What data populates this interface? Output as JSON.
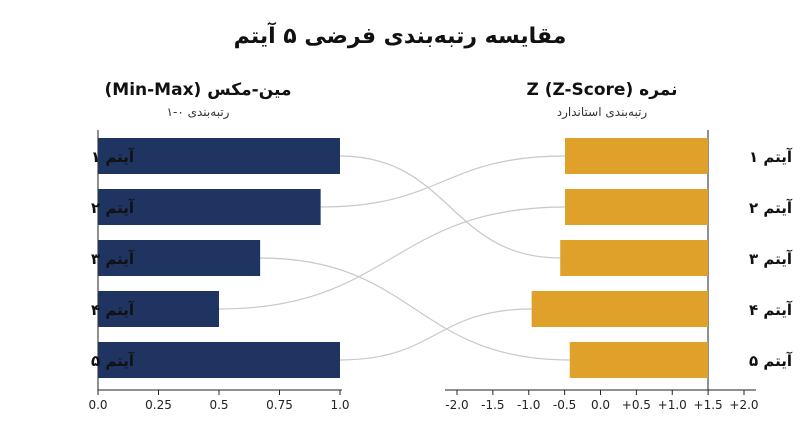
{
  "title": "مقایسه رتبه‌بندی فرضی ۵ آیتم",
  "colors": {
    "minmax": "#1f3461",
    "zscore": "#e0a12a",
    "connector": "#c8c8c8",
    "axis": "#222222"
  },
  "chart_data": [
    {
      "type": "bar",
      "orientation": "horizontal",
      "title": "مین-مکس (Min-Max)",
      "subtitle": "رتبه‌بندی ۰-۱",
      "categories": [
        "آیتم ۱",
        "آیتم ۲",
        "آیتم ۳",
        "آیتم ۴",
        "آیتم ۵"
      ],
      "values": [
        1.0,
        0.92,
        0.67,
        0.5,
        1.0
      ],
      "xlim": [
        0,
        1.0
      ],
      "ticks": [
        0.0,
        0.25,
        0.5,
        0.75,
        1.0
      ],
      "tick_labels": [
        "0.0",
        "0.25",
        "0.5",
        "0.75",
        "1.0"
      ],
      "color": "#1f3461"
    },
    {
      "type": "bar",
      "orientation": "horizontal",
      "title": "نمره Z (Z-Score)",
      "subtitle": "رتبه‌بندی استاندارد",
      "categories": [
        "آیتم ۱",
        "آیتم ۲",
        "آیتم ۳",
        "آیتم ۴",
        "آیتم ۵"
      ],
      "values": [
        1.5,
        1.5,
        1.55,
        1.85,
        1.45
      ],
      "xlim": [
        -2.0,
        2.0
      ],
      "ticks": [
        -2.0,
        -1.5,
        -1.0,
        -0.5,
        0.0,
        0.5,
        1.0,
        1.5,
        2.0
      ],
      "tick_labels": [
        "-2.0",
        "-1.5",
        "-1.0",
        "-0.5",
        "0.0",
        "+0.5",
        "+1.0",
        "+1.5",
        "+2.0"
      ],
      "color": "#e0a12a"
    }
  ]
}
